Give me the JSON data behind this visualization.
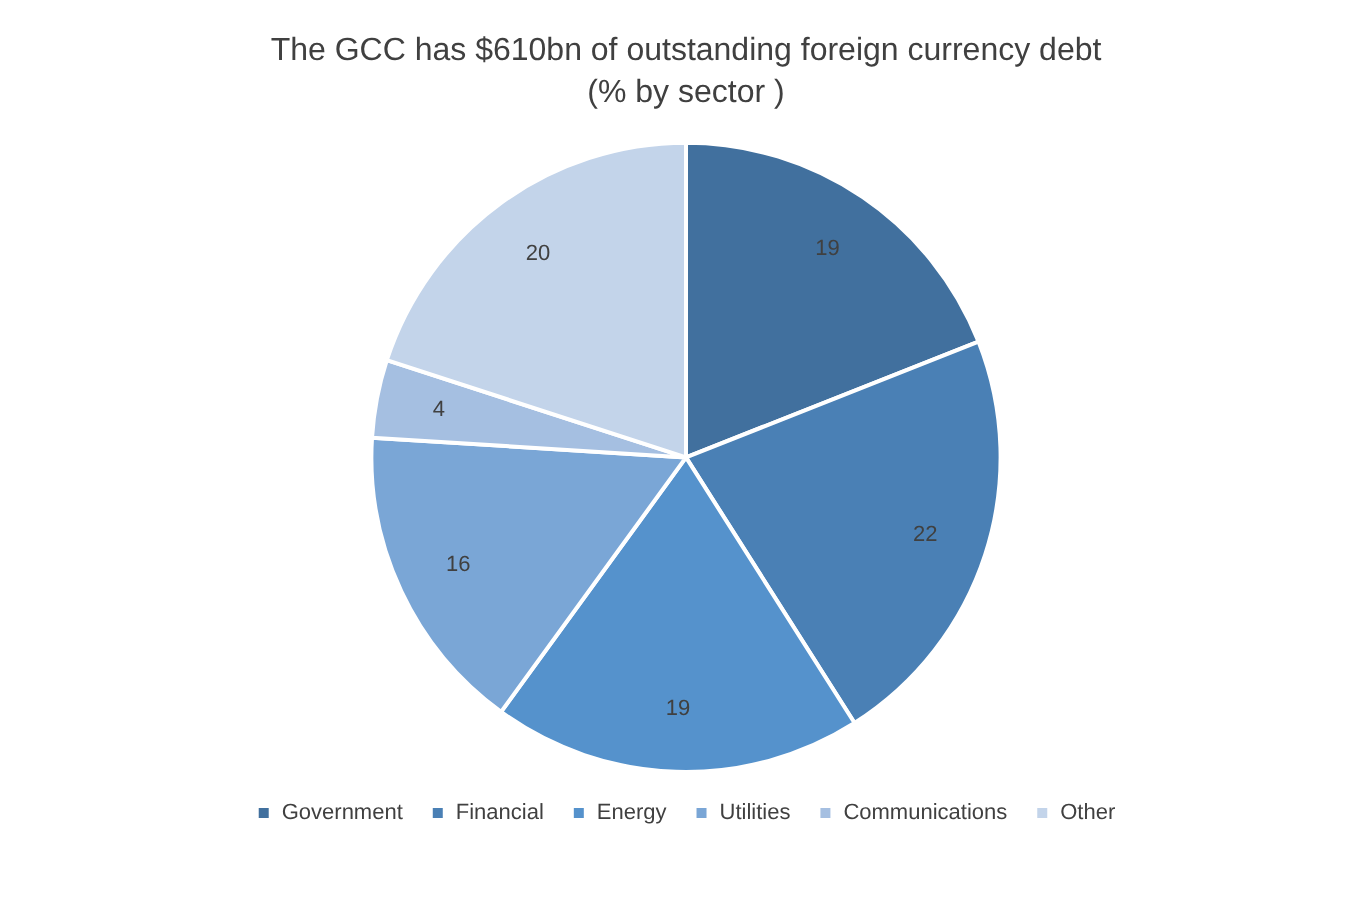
{
  "chart_data": {
    "type": "pie",
    "title": "The GCC has $610bn of outstanding foreign currency debt",
    "subtitle": "(% by sector )",
    "categories": [
      "Government",
      "Financial",
      "Energy",
      "Utilities",
      "Communications",
      "Other"
    ],
    "values": [
      19,
      22,
      19,
      16,
      4,
      20
    ],
    "colors": [
      "#41709e",
      "#4a80b5",
      "#5592cc",
      "#7aa6d6",
      "#a5bfe1",
      "#c3d4ea"
    ],
    "data_labels": true,
    "legend": "bottom"
  }
}
